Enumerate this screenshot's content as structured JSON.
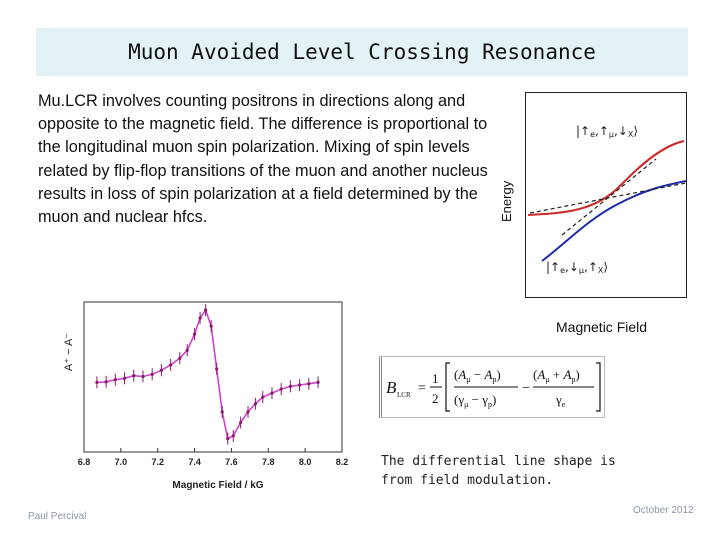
{
  "title": "Muon Avoided Level Crossing Resonance",
  "body_text": "Mu.LCR involves counting positrons in directions along and opposite to the magnetic field. The difference is proportional to the longitudinal muon spin polarization. Mixing of spin levels related by flip-flop transitions of the muon and another nucleus results in loss of spin polarization at a field determined by the muon and nuclear hfcs.",
  "energy_diagram": {
    "ylabel": "Energy",
    "xlabel": "Magnetic Field",
    "state_top": {
      "left": "|↑",
      "s1": "e",
      "mid1": ",↑",
      "s2": "μ",
      "mid2": ",↓",
      "s3": "X",
      "right": "⟩"
    },
    "state_bottom": {
      "left": "|↑",
      "s1": "e",
      "mid1": ",↓",
      "s2": "μ",
      "mid2": ",↑",
      "s3": "X",
      "right": "⟩"
    },
    "colors": {
      "upper": "#cc2a2a",
      "lower": "#1a2aa8",
      "crossing": "#222222"
    }
  },
  "chart_data": {
    "type": "scatter",
    "xlabel": "Magnetic Field / kG",
    "ylabel": "A⁺ − A⁻",
    "xlim": [
      6.8,
      8.2
    ],
    "xticks": [
      "6.8",
      "7.0",
      "7.2",
      "7.4",
      "7.6",
      "7.8",
      "8.0",
      "8.2"
    ],
    "points_color": "#8b1a6b",
    "fit_color": "#cc44cc",
    "x": [
      6.87,
      6.92,
      6.97,
      7.02,
      7.07,
      7.12,
      7.17,
      7.22,
      7.27,
      7.32,
      7.36,
      7.4,
      7.43,
      7.46,
      7.49,
      7.52,
      7.55,
      7.58,
      7.61,
      7.65,
      7.69,
      7.73,
      7.77,
      7.82,
      7.87,
      7.92,
      7.97,
      8.02,
      8.07
    ],
    "y": [
      -0.2,
      -0.18,
      -0.1,
      -0.05,
      0.05,
      0.02,
      0.1,
      0.25,
      0.45,
      0.7,
      1.0,
      1.6,
      2.2,
      2.5,
      1.9,
      0.3,
      -1.3,
      -2.3,
      -2.2,
      -1.7,
      -1.3,
      -1.0,
      -0.75,
      -0.6,
      -0.45,
      -0.35,
      -0.3,
      -0.25,
      -0.2
    ]
  },
  "formula": {
    "lhs": "B",
    "lhs_sub": "LCR",
    "eq": "=",
    "half_num": "1",
    "half_den": "2",
    "t1_num_a": "A",
    "t1_num_a_sub": "μ",
    "t1_num_minus": " − ",
    "t1_num_b": "A",
    "t1_num_b_sub": "p",
    "t1_den_a": "γ",
    "t1_den_a_sub": "μ",
    "t1_den_minus": " − ",
    "t1_den_b": "γ",
    "t1_den_b_sub": "p",
    "minus": "−",
    "t2_num_a": "A",
    "t2_num_a_sub": "μ",
    "t2_num_plus": " + ",
    "t2_num_b": "A",
    "t2_num_b_sub": "p",
    "t2_den": "γ",
    "t2_den_sub": "e"
  },
  "note": "The differential line shape is from field modulation.",
  "footer": {
    "author": "Paul Percival",
    "date": "October 2012"
  }
}
